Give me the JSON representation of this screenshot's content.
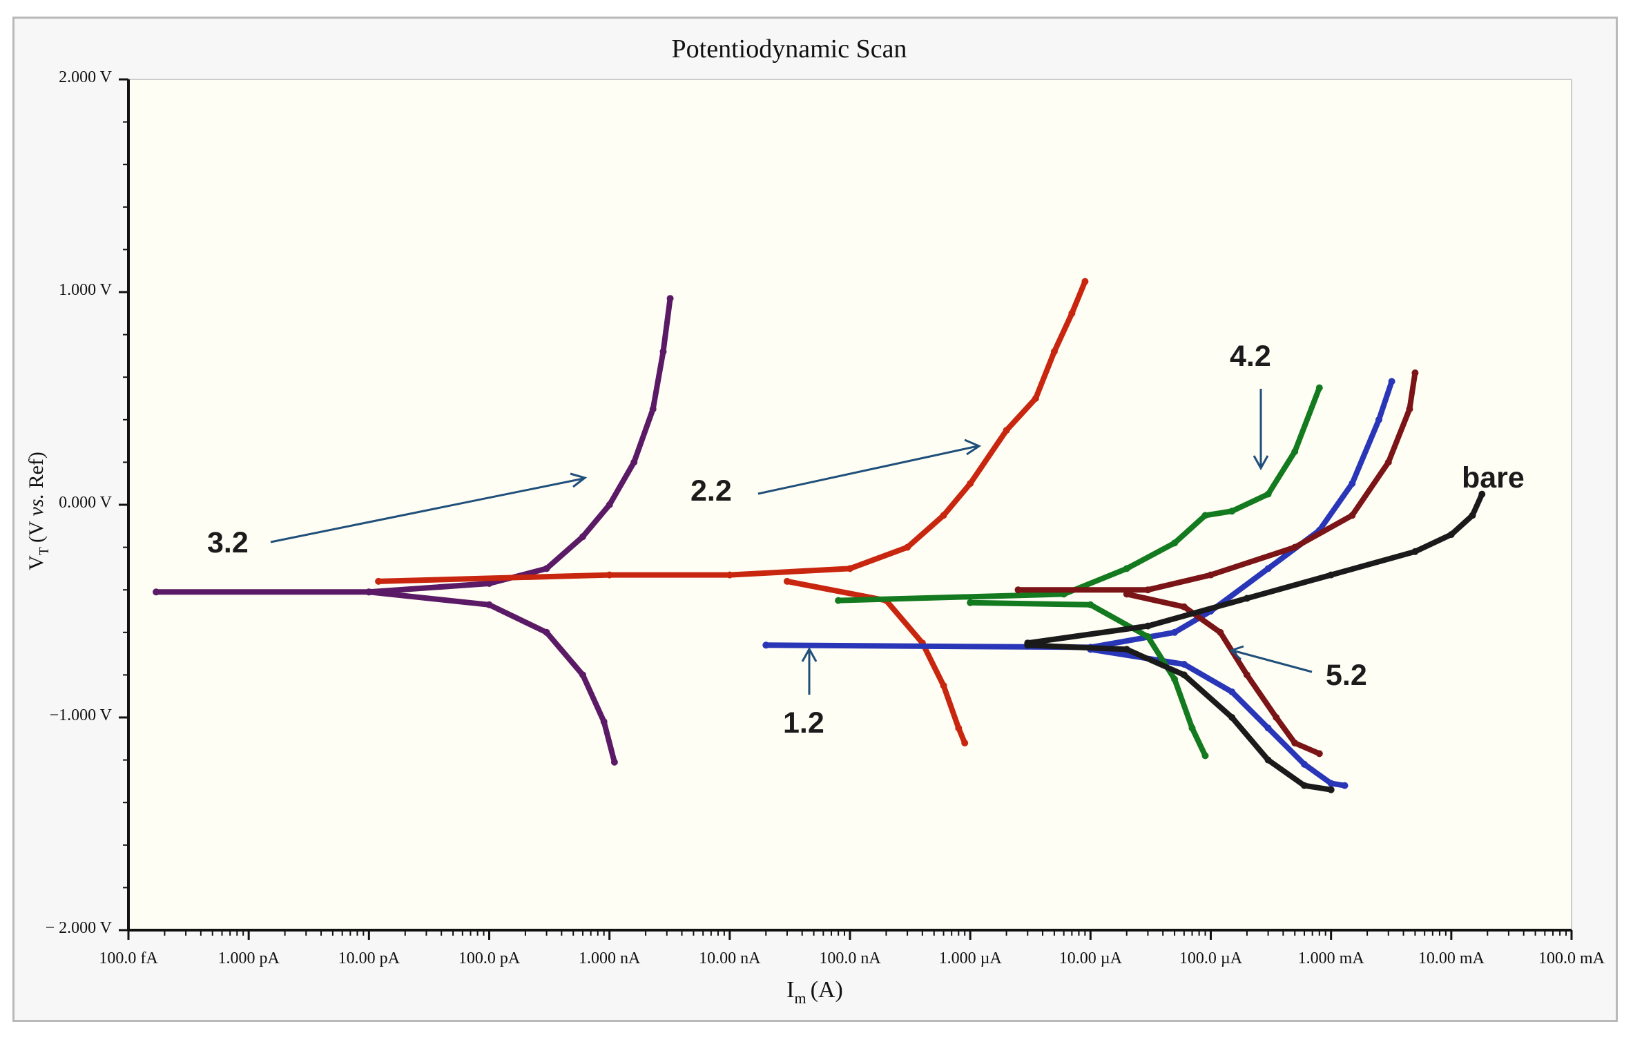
{
  "chart_data": {
    "type": "line",
    "title": "Potentiodynamic Scan",
    "xlabel_main": "I",
    "xlabel_sub": "m",
    "xlabel_unit": "(A)",
    "ylabel_main": "V",
    "ylabel_sub": "T",
    "ylabel_open": "(V ",
    "ylabel_italic": "vs.",
    "ylabel_close": " Ref)",
    "x_scale": "log",
    "xlim": [
      1e-13,
      0.1
    ],
    "ylim": [
      -2.0,
      2.0
    ],
    "x_ticks": [
      {
        "value": 1e-13,
        "label": "100.0 fA"
      },
      {
        "value": 1e-12,
        "label": "1.000 pA"
      },
      {
        "value": 1e-11,
        "label": "10.00 pA"
      },
      {
        "value": 1e-10,
        "label": "100.0 pA"
      },
      {
        "value": 1e-09,
        "label": "1.000 nA"
      },
      {
        "value": 1e-08,
        "label": "10.00 nA"
      },
      {
        "value": 1e-07,
        "label": "100.0 nA"
      },
      {
        "value": 1e-06,
        "label": "1.000 µA"
      },
      {
        "value": 1e-05,
        "label": "10.00 µA"
      },
      {
        "value": 0.0001,
        "label": "100.0 µA"
      },
      {
        "value": 0.001,
        "label": "1.000 mA"
      },
      {
        "value": 0.01,
        "label": "10.00 mA"
      },
      {
        "value": 0.1,
        "label": "100.0 mA"
      }
    ],
    "y_ticks": [
      {
        "value": 2.0,
        "label": "2.000 V"
      },
      {
        "value": 1.0,
        "label": "1.000 V"
      },
      {
        "value": 0.0,
        "label": "0.000 V"
      },
      {
        "value": -1.0,
        "label": "−1.000 V"
      },
      {
        "value": -2.0,
        "label": "− 2.000 V"
      }
    ],
    "series": [
      {
        "name": "3.2",
        "color": "#5a1a66",
        "anodic": [
          [
            1.7e-13,
            -0.41
          ],
          [
            1e-11,
            -0.41
          ],
          [
            1e-10,
            -0.37
          ],
          [
            3e-10,
            -0.3
          ],
          [
            6e-10,
            -0.15
          ],
          [
            1e-09,
            0.0
          ],
          [
            1.6e-09,
            0.2
          ],
          [
            2.3e-09,
            0.45
          ],
          [
            2.8e-09,
            0.72
          ],
          [
            3.2e-09,
            0.97
          ]
        ],
        "cathodic": [
          [
            1e-11,
            -0.41
          ],
          [
            1e-10,
            -0.47
          ],
          [
            3e-10,
            -0.6
          ],
          [
            6e-10,
            -0.8
          ],
          [
            9e-10,
            -1.02
          ],
          [
            1.1e-09,
            -1.21
          ]
        ]
      },
      {
        "name": "2.2",
        "color": "#c8260f",
        "anodic": [
          [
            1.2e-11,
            -0.36
          ],
          [
            1e-09,
            -0.33
          ],
          [
            1e-08,
            -0.33
          ],
          [
            1e-07,
            -0.3
          ],
          [
            3e-07,
            -0.2
          ],
          [
            6e-07,
            -0.05
          ],
          [
            1e-06,
            0.1
          ],
          [
            2e-06,
            0.35
          ],
          [
            3.5e-06,
            0.5
          ],
          [
            5e-06,
            0.72
          ],
          [
            7e-06,
            0.9
          ],
          [
            9e-06,
            1.05
          ]
        ],
        "cathodic": [
          [
            3e-08,
            -0.36
          ],
          [
            2e-07,
            -0.45
          ],
          [
            4e-07,
            -0.65
          ],
          [
            6e-07,
            -0.85
          ],
          [
            8e-07,
            -1.05
          ],
          [
            9e-07,
            -1.12
          ]
        ]
      },
      {
        "name": "1.2",
        "color": "#2a36b8",
        "anodic": [
          [
            2e-08,
            -0.66
          ],
          [
            1e-05,
            -0.67
          ],
          [
            5e-05,
            -0.6
          ],
          [
            0.0001,
            -0.5
          ],
          [
            0.0003,
            -0.3
          ],
          [
            0.0008,
            -0.12
          ],
          [
            0.0015,
            0.1
          ],
          [
            0.0025,
            0.4
          ],
          [
            0.0032,
            0.58
          ]
        ],
        "cathodic": [
          [
            1e-05,
            -0.68
          ],
          [
            6e-05,
            -0.75
          ],
          [
            0.00015,
            -0.88
          ],
          [
            0.0003,
            -1.05
          ],
          [
            0.0006,
            -1.22
          ],
          [
            0.001,
            -1.31
          ],
          [
            0.0013,
            -1.32
          ]
        ]
      },
      {
        "name": "4.2",
        "color": "#137a1f",
        "anodic": [
          [
            8e-08,
            -0.45
          ],
          [
            6e-06,
            -0.42
          ],
          [
            2e-05,
            -0.3
          ],
          [
            5e-05,
            -0.18
          ],
          [
            9e-05,
            -0.05
          ],
          [
            0.00015,
            -0.03
          ],
          [
            0.0003,
            0.05
          ],
          [
            0.0005,
            0.25
          ],
          [
            0.0008,
            0.55
          ]
        ],
        "cathodic": [
          [
            1e-06,
            -0.46
          ],
          [
            1e-05,
            -0.47
          ],
          [
            3e-05,
            -0.62
          ],
          [
            5e-05,
            -0.82
          ],
          [
            7e-05,
            -1.05
          ],
          [
            9e-05,
            -1.18
          ]
        ]
      },
      {
        "name": "5.2",
        "color": "#7a1416",
        "anodic": [
          [
            2.5e-06,
            -0.4
          ],
          [
            3e-05,
            -0.4
          ],
          [
            0.0001,
            -0.33
          ],
          [
            0.0005,
            -0.2
          ],
          [
            0.0015,
            -0.05
          ],
          [
            0.003,
            0.2
          ],
          [
            0.0045,
            0.45
          ],
          [
            0.005,
            0.62
          ]
        ],
        "cathodic": [
          [
            2e-05,
            -0.42
          ],
          [
            6e-05,
            -0.48
          ],
          [
            0.00012,
            -0.6
          ],
          [
            0.0002,
            -0.8
          ],
          [
            0.00035,
            -1.0
          ],
          [
            0.0005,
            -1.12
          ],
          [
            0.0008,
            -1.17
          ]
        ]
      },
      {
        "name": "bare",
        "color": "#1a1a1a",
        "anodic": [
          [
            3e-06,
            -0.65
          ],
          [
            3e-05,
            -0.57
          ],
          [
            0.0002,
            -0.44
          ],
          [
            0.001,
            -0.33
          ],
          [
            0.005,
            -0.22
          ],
          [
            0.01,
            -0.14
          ],
          [
            0.015,
            -0.05
          ],
          [
            0.018,
            0.05
          ]
        ],
        "cathodic": [
          [
            3e-06,
            -0.66
          ],
          [
            2e-05,
            -0.68
          ],
          [
            6e-05,
            -0.8
          ],
          [
            0.00015,
            -1.0
          ],
          [
            0.0003,
            -1.2
          ],
          [
            0.0006,
            -1.32
          ],
          [
            0.001,
            -1.34
          ]
        ]
      }
    ],
    "annotations": [
      {
        "text": "3.2",
        "arrow": "toward 3.2 anodic branch"
      },
      {
        "text": "2.2",
        "arrow": "toward 2.2 anodic branch"
      },
      {
        "text": "1.2",
        "arrow": "up toward 1.2 plateau"
      },
      {
        "text": "4.2",
        "arrow": "down toward 4.2 anodic branch"
      },
      {
        "text": "5.2",
        "arrow": "toward 5.2 cathodic branch"
      },
      {
        "text": "bare",
        "arrow": "none"
      }
    ]
  }
}
